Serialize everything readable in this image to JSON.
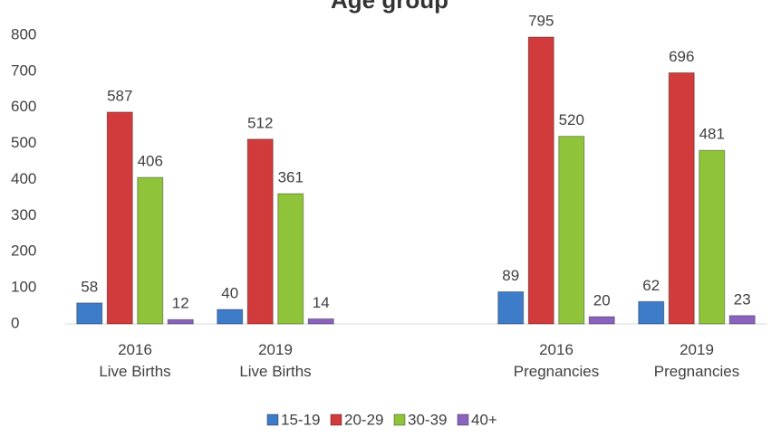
{
  "chart_data": {
    "type": "bar",
    "title": "Age group",
    "categories": [
      "2016\nLive Births",
      "2019\nLive Births",
      null,
      "2016\nPregnancies",
      "2019\nPregnancies"
    ],
    "series": [
      {
        "name": "15-19",
        "color": "#3d7cc9",
        "values": [
          58,
          40,
          null,
          89,
          62
        ]
      },
      {
        "name": "20-29",
        "color": "#d23b3b",
        "values": [
          587,
          512,
          null,
          795,
          696
        ]
      },
      {
        "name": "30-39",
        "color": "#8fc43a",
        "values": [
          406,
          361,
          null,
          520,
          481
        ]
      },
      {
        "name": "40+",
        "color": "#8a63be",
        "values": [
          12,
          14,
          null,
          20,
          23
        ]
      }
    ],
    "ylim": [
      0,
      800
    ],
    "yticks": [
      0,
      100,
      200,
      300,
      400,
      500,
      600,
      700,
      800
    ],
    "grid": false,
    "legend": "bottom"
  }
}
